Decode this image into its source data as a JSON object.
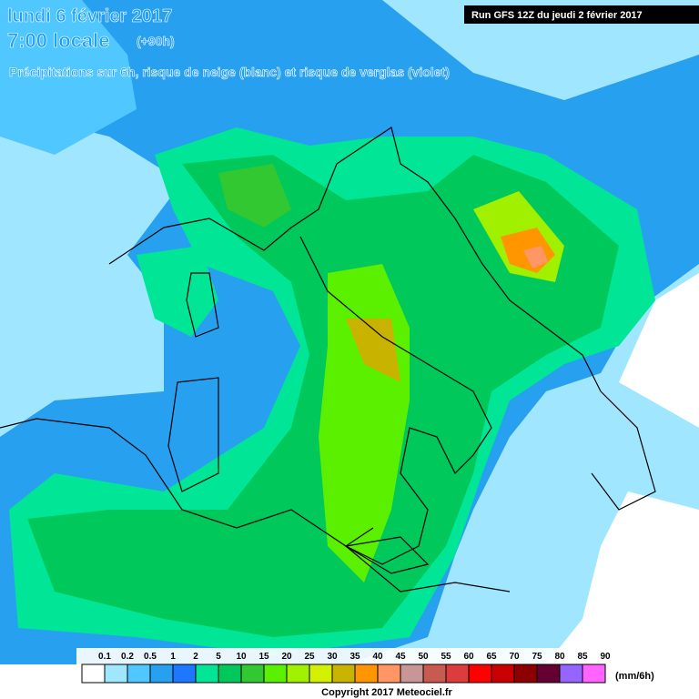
{
  "header": {
    "date": "lundi 6 février 2017",
    "time": "7:00 locale",
    "lead": "(+90h)",
    "subtitle": "Précipitations sur 6h, risque de neige (blanc) et risque de verglas (violet)",
    "run": "Run GFS 12Z du jeudi 2 février 2017"
  },
  "legend": {
    "labels": [
      "0.1",
      "0.2",
      "0.5",
      "1",
      "2",
      "5",
      "10",
      "15",
      "20",
      "25",
      "30",
      "35",
      "40",
      "45",
      "50",
      "55",
      "60",
      "65",
      "70",
      "75",
      "80",
      "85",
      "90"
    ],
    "colors": [
      "#ffffff",
      "#a0e6ff",
      "#50c8ff",
      "#28a0f0",
      "#1e78ff",
      "#00e696",
      "#00c85a",
      "#32c832",
      "#5af000",
      "#a0f000",
      "#d2f000",
      "#c8b400",
      "#ff9600",
      "#ff9664",
      "#c89696",
      "#c85a50",
      "#dc3c3c",
      "#ff0000",
      "#c80000",
      "#8c0000",
      "#640032",
      "#9664ff",
      "#ff64ff"
    ],
    "unit": "(mm/6h)"
  },
  "footer": {
    "copyright": "Copyright 2017 Meteociel.fr"
  }
}
